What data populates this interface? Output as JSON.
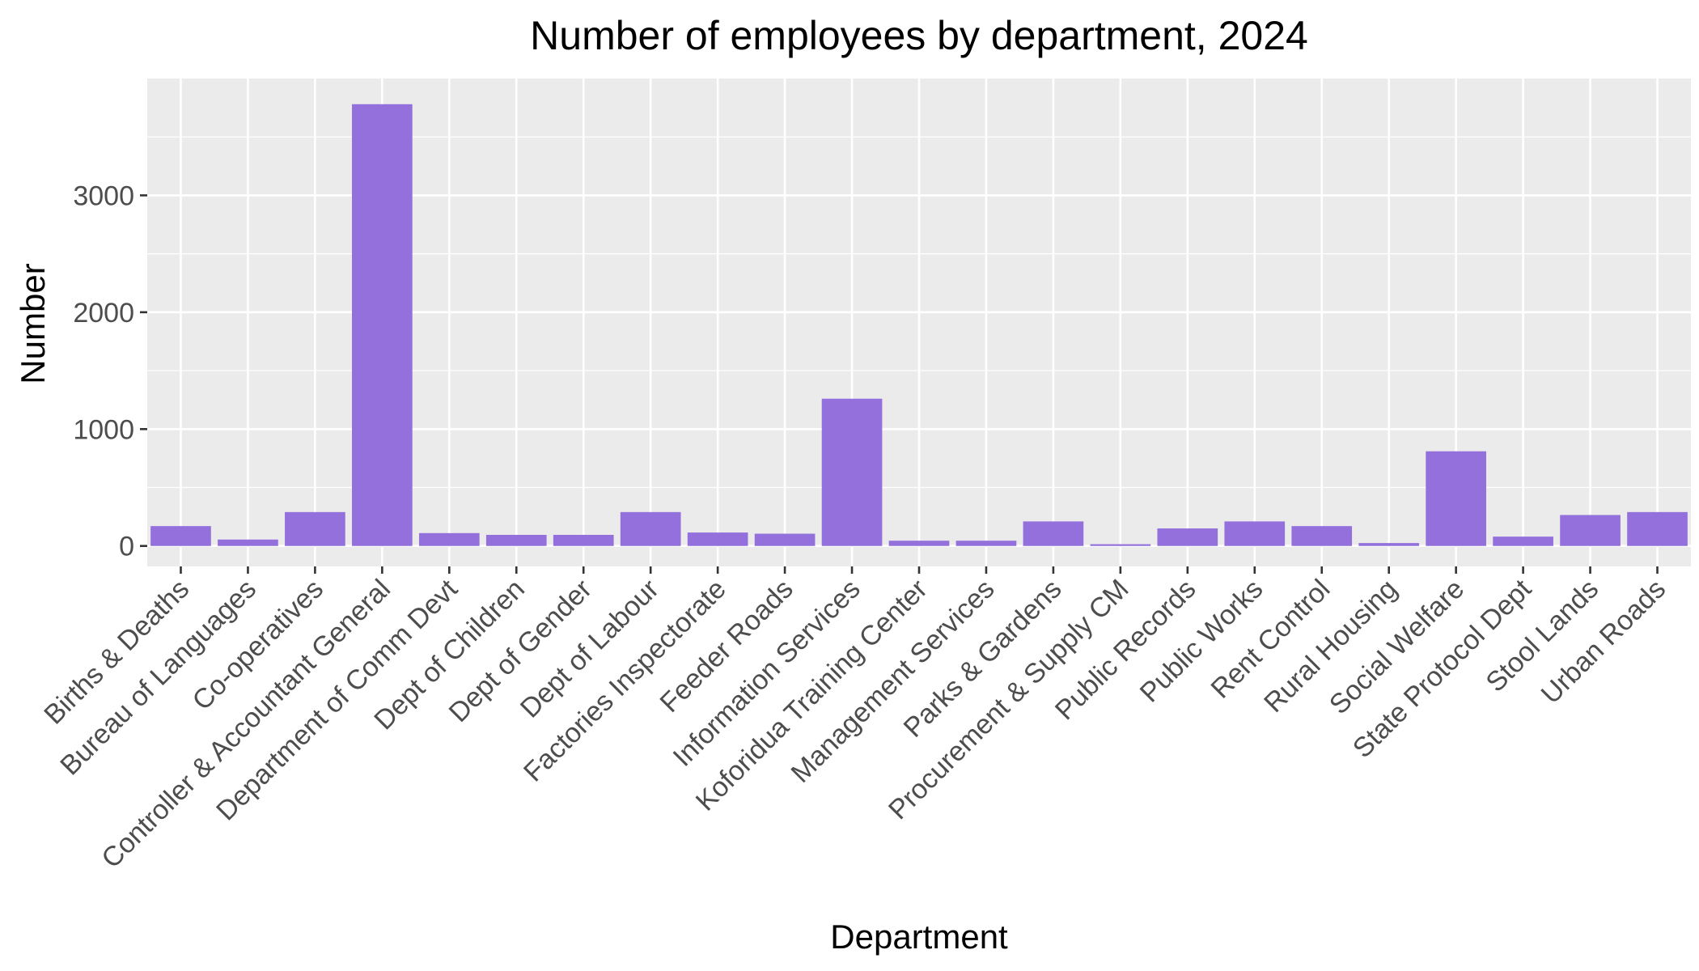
{
  "chart_data": {
    "type": "bar",
    "title": "Number of employees by department, 2024",
    "xlabel": "Department",
    "ylabel": "Number",
    "ylim": [
      -175,
      4000
    ],
    "yticks": [
      0,
      1000,
      2000,
      3000
    ],
    "ytick_labels": [
      "0",
      "1000",
      "2000",
      "3000"
    ],
    "grid": true,
    "legend": "none",
    "categories": [
      "Births & Deaths",
      "Bureau of Languages",
      "Co-operatives",
      "Controller & Accountant General",
      "Department of Comm Devt",
      "Dept of Children",
      "Dept of Gender",
      "Dept of Labour",
      "Factories Inspectorate",
      "Feeder Roads",
      "Information Services",
      "Koforidua Training Center",
      "Management Services",
      "Parks & Gardens",
      "Procurement & Supply CM",
      "Public Records",
      "Public Works",
      "Rent Control",
      "Rural Housing",
      "Social Welfare",
      "State Protocol Dept",
      "Stool Lands",
      "Urban Roads"
    ],
    "values": [
      170,
      55,
      290,
      3780,
      110,
      95,
      95,
      290,
      115,
      105,
      1260,
      45,
      45,
      210,
      15,
      150,
      210,
      170,
      25,
      810,
      80,
      265,
      290
    ],
    "colors": {
      "bar": "#9370DB",
      "panel": "#EBEBEB",
      "grid_major": "#FFFFFF",
      "axis_text": "#4D4D4D",
      "tick_mark": "#333333",
      "title_text": "#000000"
    }
  }
}
